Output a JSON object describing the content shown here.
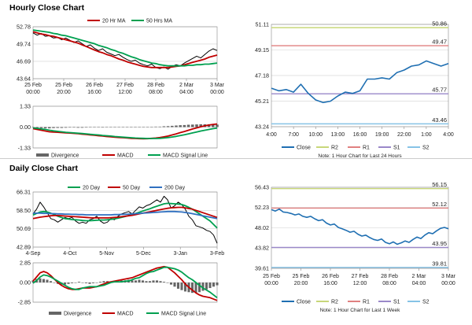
{
  "sections": {
    "hourly_title": "Hourly Close Chart",
    "daily_title": "Daily Close Chart"
  },
  "colors": {
    "close": "#000000",
    "ma_short": "#c00000",
    "ma_long": "#00a050",
    "divergence": "#666666",
    "macd": "#c00000",
    "signal": "#00a050",
    "pivot_close": "#1f6fb2",
    "r2": "#c8d77a",
    "r1": "#e08080",
    "s1": "#9a88c9",
    "s2": "#86c3e6"
  },
  "chart_data": [
    {
      "id": "hourly_price",
      "type": "line",
      "title": "Hourly Close Chart",
      "x_tick_labels": [
        [
          "25 Feb",
          "00:00"
        ],
        [
          "25 Feb",
          "20:00"
        ],
        [
          "26 Feb",
          "16:00"
        ],
        [
          "27 Feb",
          "12:00"
        ],
        [
          "28 Feb",
          "08:00"
        ],
        [
          "2 Mar",
          "04:00"
        ],
        [
          "3 Mar",
          "00:00"
        ]
      ],
      "y_ticks": [
        52.78,
        49.74,
        46.69,
        43.64
      ],
      "ylim": [
        43.64,
        52.78
      ],
      "series": [
        {
          "name": "Close",
          "values": [
            51.7,
            51.3,
            51.6,
            51.1,
            51.2,
            50.8,
            50.9,
            50.5,
            50.8,
            50.4,
            50.0,
            50.3,
            49.8,
            49.3,
            49.6,
            49.0,
            48.6,
            48.9,
            48.3,
            48.0,
            47.7,
            47.9,
            47.4,
            47.0,
            46.7,
            46.9,
            46.4,
            46.1,
            45.9,
            46.2,
            45.6,
            45.4,
            45.7,
            45.3,
            45.8,
            46.1,
            45.9,
            46.4,
            46.8,
            47.2,
            47.6,
            47.3,
            47.9,
            48.5,
            48.9,
            48.6
          ]
        },
        {
          "name": "20 Hr MA",
          "values": [
            51.9,
            51.7,
            51.5,
            51.4,
            51.2,
            51.1,
            50.9,
            50.7,
            50.5,
            50.3,
            50.1,
            49.9,
            49.6,
            49.3,
            49.0,
            48.7,
            48.4,
            48.2,
            47.9,
            47.7,
            47.4,
            47.1,
            46.9,
            46.6,
            46.4,
            46.2,
            46.0,
            45.8,
            45.7,
            45.6,
            45.6,
            45.6,
            45.6,
            45.6,
            45.7,
            45.8,
            45.9,
            46.1,
            46.3,
            46.5,
            46.7,
            46.9,
            47.1,
            47.4,
            47.6,
            47.8
          ]
        },
        {
          "name": "50 Hrs MA",
          "values": [
            52.2,
            52.1,
            52.0,
            51.9,
            51.8,
            51.6,
            51.5,
            51.3,
            51.2,
            51.0,
            50.8,
            50.6,
            50.4,
            50.2,
            50.0,
            49.8,
            49.5,
            49.3,
            49.1,
            48.8,
            48.6,
            48.3,
            48.1,
            47.8,
            47.5,
            47.3,
            47.0,
            46.8,
            46.6,
            46.4,
            46.3,
            46.1,
            46.0,
            45.9,
            45.9,
            45.9,
            45.9,
            45.9,
            46.0,
            46.0,
            46.1,
            46.1,
            46.2,
            46.2,
            46.3,
            46.4
          ]
        }
      ],
      "legend": [
        "20 Hr MA",
        "50 Hrs MA"
      ]
    },
    {
      "id": "hourly_macd",
      "type": "line",
      "y_ticks": [
        1.33,
        0.0,
        -1.33
      ],
      "ylim": [
        -1.33,
        1.33
      ],
      "series": [
        {
          "name": "Divergence",
          "values": [
            -0.02,
            -0.05,
            -0.07,
            -0.08,
            -0.08,
            -0.06,
            -0.05,
            -0.05,
            -0.04,
            -0.03,
            -0.03,
            -0.04,
            -0.04,
            -0.03,
            -0.02,
            -0.02,
            -0.02,
            -0.03,
            -0.02,
            -0.01,
            -0.01,
            -0.01,
            -0.01,
            -0.02,
            -0.01,
            0.0,
            0.0,
            0.0,
            0.01,
            0.02,
            0.03,
            0.03,
            0.05,
            0.06,
            0.08,
            0.1,
            0.12,
            0.13,
            0.15,
            0.16,
            0.17,
            0.18,
            0.18,
            0.18,
            0.17,
            0.16
          ]
        },
        {
          "name": "MACD",
          "values": [
            -0.1,
            -0.15,
            -0.2,
            -0.25,
            -0.3,
            -0.32,
            -0.33,
            -0.35,
            -0.37,
            -0.38,
            -0.4,
            -0.42,
            -0.45,
            -0.47,
            -0.5,
            -0.52,
            -0.55,
            -0.57,
            -0.6,
            -0.62,
            -0.64,
            -0.66,
            -0.68,
            -0.7,
            -0.72,
            -0.73,
            -0.74,
            -0.75,
            -0.74,
            -0.72,
            -0.7,
            -0.67,
            -0.62,
            -0.57,
            -0.5,
            -0.43,
            -0.35,
            -0.28,
            -0.2,
            -0.12,
            -0.05,
            0.02,
            0.08,
            0.13,
            0.17,
            0.2
          ]
        },
        {
          "name": "MACD Signal Line",
          "values": [
            -0.05,
            -0.08,
            -0.12,
            -0.15,
            -0.2,
            -0.24,
            -0.27,
            -0.3,
            -0.33,
            -0.35,
            -0.37,
            -0.39,
            -0.41,
            -0.43,
            -0.46,
            -0.48,
            -0.5,
            -0.53,
            -0.55,
            -0.57,
            -0.6,
            -0.62,
            -0.64,
            -0.66,
            -0.68,
            -0.7,
            -0.71,
            -0.72,
            -0.73,
            -0.73,
            -0.73,
            -0.72,
            -0.7,
            -0.67,
            -0.63,
            -0.59,
            -0.54,
            -0.49,
            -0.43,
            -0.37,
            -0.31,
            -0.25,
            -0.2,
            -0.15,
            -0.1,
            -0.06
          ]
        }
      ],
      "legend": [
        "Divergence",
        "MACD",
        "MACD Signal Line"
      ]
    },
    {
      "id": "hourly_pivot",
      "type": "line",
      "y_ticks": [
        51.11,
        49.15,
        47.18,
        45.21,
        43.24
      ],
      "ylim": [
        43.24,
        51.11
      ],
      "x_tick_labels": [
        "4:00",
        "7:00",
        "10:00",
        "13:00",
        "16:00",
        "19:00",
        "22:00",
        "1:00",
        "4:00"
      ],
      "series": [
        {
          "name": "Close",
          "values": [
            46.2,
            46.0,
            46.1,
            45.9,
            46.5,
            45.8,
            45.3,
            45.1,
            45.2,
            45.6,
            45.9,
            45.8,
            46.0,
            46.9,
            46.9,
            47.0,
            46.9,
            47.4,
            47.6,
            47.9,
            48.0,
            48.3,
            48.1,
            47.9,
            48.1
          ]
        }
      ],
      "levels": [
        {
          "name": "R2",
          "value": 50.86,
          "label": "50.86"
        },
        {
          "name": "R1",
          "value": 49.47,
          "label": "49.47"
        },
        {
          "name": "S1",
          "value": 45.77,
          "label": "45.77"
        },
        {
          "name": "S2",
          "value": 43.46,
          "label": "43.46"
        }
      ],
      "legend": [
        "Close",
        "R2",
        "R1",
        "S1",
        "S2"
      ],
      "note": "Note: 1 Hour Chart for Last 24 Hours"
    },
    {
      "id": "daily_price",
      "type": "line",
      "title": "Daily Close Chart",
      "x_tick_labels": [
        "4-Sep",
        "4-Oct",
        "5-Nov",
        "5-Dec",
        "3-Jan",
        "3-Feb"
      ],
      "y_ticks": [
        66.31,
        58.5,
        50.69,
        42.89
      ],
      "ylim": [
        42.89,
        66.31
      ],
      "series": [
        {
          "name": "Close",
          "values": [
            57.0,
            59.0,
            62.0,
            60.0,
            57.5,
            55.0,
            54.5,
            53.5,
            54.5,
            55.5,
            55.0,
            55.5,
            54.0,
            53.0,
            53.5,
            53.0,
            54.5,
            55.0,
            56.0,
            54.0,
            53.0,
            53.5,
            55.0,
            54.5,
            56.0,
            57.0,
            57.5,
            58.0,
            57.0,
            58.5,
            60.0,
            59.5,
            60.5,
            61.0,
            62.0,
            63.0,
            62.0,
            64.5,
            63.0,
            59.5,
            60.5,
            62.0,
            61.0,
            59.0,
            56.0,
            54.5,
            52.0,
            51.5,
            51.0,
            50.0,
            49.5,
            48.0,
            44.5
          ]
        },
        {
          "name": "20 Day",
          "values": [
            56.5,
            57.2,
            57.8,
            58.0,
            57.8,
            57.3,
            56.7,
            56.0,
            55.5,
            55.0,
            54.8,
            54.6,
            54.5,
            54.4,
            54.2,
            54.1,
            54.1,
            54.2,
            54.3,
            54.4,
            54.4,
            54.5,
            54.7,
            54.9,
            55.2,
            55.5,
            55.9,
            56.3,
            56.7,
            57.2,
            57.7,
            58.2,
            58.7,
            59.2,
            59.8,
            60.3,
            60.8,
            61.3,
            61.5,
            61.4,
            61.3,
            61.2,
            61.0,
            60.5,
            59.8,
            59.0,
            58.0,
            57.0,
            56.0,
            55.0,
            54.0,
            52.5,
            51.0
          ]
        },
        {
          "name": "50 Day",
          "values": [
            55.0,
            55.3,
            55.6,
            55.8,
            56.0,
            56.2,
            56.3,
            56.3,
            56.2,
            56.1,
            56.0,
            55.9,
            55.8,
            55.7,
            55.6,
            55.5,
            55.4,
            55.3,
            55.3,
            55.3,
            55.3,
            55.3,
            55.4,
            55.5,
            55.6,
            55.8,
            56.0,
            56.2,
            56.4,
            56.7,
            57.0,
            57.3,
            57.6,
            57.9,
            58.2,
            58.5,
            58.8,
            59.1,
            59.4,
            59.6,
            59.7,
            59.8,
            59.8,
            59.6,
            59.3,
            59.0,
            58.5,
            58.0,
            57.5,
            57.0,
            56.5,
            56.0,
            55.5
          ]
        },
        {
          "name": "200 Day",
          "values": [
            57.3,
            57.3,
            57.3,
            57.2,
            57.2,
            57.1,
            57.1,
            57.0,
            57.0,
            56.9,
            56.9,
            56.8,
            56.8,
            56.7,
            56.7,
            56.6,
            56.6,
            56.6,
            56.6,
            56.6,
            56.6,
            56.6,
            56.6,
            56.7,
            56.7,
            56.8,
            56.8,
            56.9,
            57.0,
            57.1,
            57.2,
            57.3,
            57.4,
            57.5,
            57.6,
            57.7,
            57.8,
            57.9,
            58.0,
            58.0,
            58.0,
            57.9,
            57.8,
            57.6,
            57.4,
            57.1,
            56.8,
            56.5,
            56.2,
            55.9,
            55.6,
            55.3,
            55.0
          ]
        }
      ],
      "legend": [
        "20 Day",
        "50 Day",
        "200 Day"
      ]
    },
    {
      "id": "daily_macd",
      "type": "line",
      "y_ticks": [
        2.85,
        0.0,
        -2.85
      ],
      "ylim": [
        -2.85,
        2.85
      ],
      "series": [
        {
          "name": "Divergence",
          "values": [
            0.3,
            0.5,
            0.6,
            0.5,
            0.4,
            0.2,
            0.0,
            -0.2,
            -0.3,
            -0.3,
            -0.2,
            -0.1,
            0.0,
            0.1,
            0.0,
            -0.1,
            -0.2,
            -0.1,
            0.0,
            0.1,
            0.2,
            0.2,
            0.1,
            0.1,
            0.2,
            0.3,
            0.3,
            0.4,
            0.3,
            0.3,
            0.4,
            0.3,
            0.2,
            0.2,
            0.3,
            0.3,
            0.2,
            0.1,
            0.0,
            -0.3,
            -0.6,
            -0.9,
            -1.1,
            -1.3,
            -1.4,
            -1.5,
            -1.5,
            -1.4,
            -1.2,
            -1.0,
            -0.8,
            -0.6,
            -0.4
          ]
        },
        {
          "name": "MACD",
          "values": [
            0.2,
            0.8,
            1.4,
            1.6,
            1.4,
            1.0,
            0.5,
            0.0,
            -0.4,
            -0.7,
            -0.9,
            -1.0,
            -1.0,
            -0.9,
            -0.8,
            -0.8,
            -0.8,
            -0.7,
            -0.6,
            -0.4,
            -0.2,
            0.0,
            0.1,
            0.2,
            0.3,
            0.4,
            0.5,
            0.6,
            0.7,
            0.9,
            1.1,
            1.3,
            1.5,
            1.7,
            1.9,
            2.1,
            2.2,
            2.3,
            2.2,
            1.8,
            1.4,
            0.9,
            0.4,
            -0.2,
            -0.7,
            -1.1,
            -1.5,
            -1.8,
            -2.0,
            -2.1,
            -2.2,
            -2.4,
            -2.6
          ]
        },
        {
          "name": "MACD Signal Line",
          "values": [
            -0.1,
            0.3,
            0.8,
            1.1,
            1.0,
            0.8,
            0.5,
            0.2,
            -0.1,
            -0.4,
            -0.7,
            -0.9,
            -1.0,
            -1.0,
            -0.8,
            -0.7,
            -0.6,
            -0.6,
            -0.6,
            -0.5,
            -0.4,
            -0.2,
            0.0,
            0.1,
            0.1,
            0.1,
            0.2,
            0.2,
            0.4,
            0.6,
            0.7,
            1.0,
            1.3,
            1.5,
            1.6,
            1.8,
            2.0,
            2.2,
            2.2,
            2.1,
            2.0,
            1.8,
            1.5,
            1.1,
            0.7,
            0.4,
            0.0,
            -0.4,
            -0.8,
            -1.1,
            -1.4,
            -1.8,
            -2.2
          ]
        }
      ],
      "legend": [
        "Divergence",
        "MACD",
        "MACD Signal Line"
      ]
    },
    {
      "id": "daily_pivot",
      "type": "line",
      "y_ticks": [
        56.43,
        52.23,
        48.02,
        43.82,
        39.61
      ],
      "ylim": [
        39.61,
        56.43
      ],
      "x_tick_labels": [
        [
          "25 Feb",
          "00:00"
        ],
        [
          "25 Feb",
          "20:00"
        ],
        [
          "26 Feb",
          "16:00"
        ],
        [
          "27 Feb",
          "12:00"
        ],
        [
          "28 Feb",
          "08:00"
        ],
        [
          "2 Mar",
          "04:00"
        ],
        [
          "3 Mar",
          "00:00"
        ]
      ],
      "series": [
        {
          "name": "Close",
          "values": [
            51.8,
            51.5,
            51.9,
            51.3,
            51.2,
            51.0,
            50.7,
            50.9,
            50.4,
            50.2,
            50.4,
            49.9,
            49.5,
            49.7,
            49.0,
            48.6,
            48.8,
            48.1,
            47.8,
            47.5,
            47.1,
            47.3,
            46.7,
            46.3,
            46.5,
            46.0,
            45.6,
            45.4,
            45.7,
            45.0,
            44.7,
            45.1,
            44.6,
            44.9,
            45.3,
            45.0,
            45.6,
            46.1,
            45.8,
            46.5,
            47.0,
            46.8,
            47.4,
            47.9,
            48.1,
            47.8
          ]
        }
      ],
      "levels": [
        {
          "name": "R2",
          "value": 56.15,
          "label": "56.15"
        },
        {
          "name": "R1",
          "value": 52.12,
          "label": "52.12"
        },
        {
          "name": "S1",
          "value": 43.95,
          "label": "43.95"
        },
        {
          "name": "S2",
          "value": 39.81,
          "label": "39.81"
        }
      ],
      "legend": [
        "Close",
        "R2",
        "R1",
        "S1",
        "S2"
      ],
      "note": "Note: 1 Hour Chart for Last 1 Week"
    }
  ]
}
